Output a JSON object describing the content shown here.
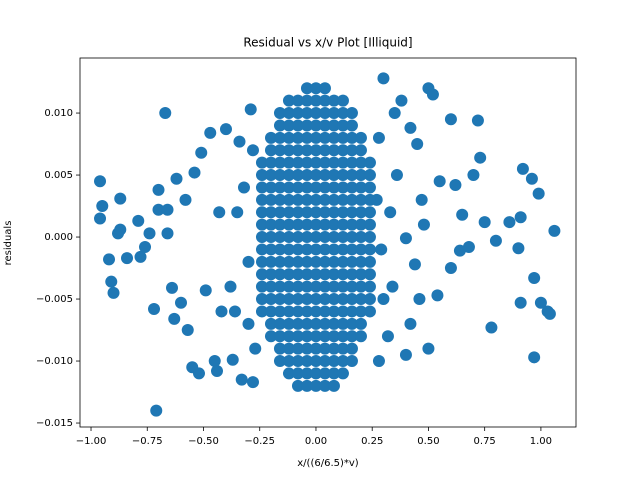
{
  "chart_data": {
    "type": "scatter",
    "title": "Residual vs x/v Plot [Illiquid]",
    "x_label": "x/((6/6.5)*v)",
    "y_label": "residuals",
    "color": "#1f77b4",
    "xlim": [
      -1.049,
      1.156
    ],
    "ylim": [
      -0.01532,
      0.01444
    ],
    "xticks": [
      {
        "value": -1,
        "label": "−1.00"
      },
      {
        "value": -0.75,
        "label": "−0.75"
      },
      {
        "value": -0.5,
        "label": "−0.50"
      },
      {
        "value": -0.25,
        "label": "−0.25"
      },
      {
        "value": 0,
        "label": "0.00"
      },
      {
        "value": 0.25,
        "label": "0.25"
      },
      {
        "value": 0.5,
        "label": "0.50"
      },
      {
        "value": 0.75,
        "label": "0.75"
      },
      {
        "value": 1,
        "label": "1.00"
      }
    ],
    "yticks": [
      {
        "value": -0.015,
        "label": "−0.015"
      },
      {
        "value": -0.01,
        "label": "−0.010"
      },
      {
        "value": -0.005,
        "label": "−0.005"
      },
      {
        "value": 0,
        "label": "0.000"
      },
      {
        "value": 0.005,
        "label": "0.005"
      },
      {
        "value": 0.01,
        "label": "0.010"
      }
    ],
    "x": [
      -0.96,
      -0.96,
      -0.95,
      -0.92,
      -0.91,
      -0.9,
      -0.88,
      -0.87,
      -0.87,
      -0.84,
      -0.79,
      -0.78,
      -0.76,
      -0.74,
      -0.72,
      -0.71,
      -0.7,
      -0.7,
      -0.67,
      -0.66,
      -0.66,
      -0.64,
      -0.63,
      -0.62,
      -0.6,
      -0.58,
      -0.57,
      -0.55,
      -0.54,
      -0.52,
      -0.51,
      -0.49,
      -0.47,
      -0.45,
      -0.44,
      -0.43,
      -0.42,
      -0.4,
      -0.38,
      -0.37,
      -0.34,
      -0.33,
      -0.3,
      -0.29,
      -0.28,
      0.5,
      0.52,
      0.6,
      0.72,
      0.73,
      0.7,
      0.62,
      0.55,
      0.65,
      0.64,
      0.68,
      0.75,
      0.8,
      0.78,
      0.86,
      0.91,
      0.92,
      0.96,
      0.99,
      1.06,
      0.9,
      0.91,
      0.97,
      1,
      1.03,
      1.04,
      0.97,
      0.6,
      0.54,
      0.5,
      0.46,
      0.42,
      0.4,
      0.45,
      0.42,
      0.38,
      0.35,
      0.47,
      0.44,
      0.48,
      0.4,
      0.36,
      0.34,
      0.32,
      0.3,
      -0.35,
      -0.3,
      -0.32,
      -0.28,
      -0.27,
      -0.36,
      0.28,
      0.3,
      0.28,
      0.33,
      0.27,
      0.29,
      -0.24,
      -0.24,
      -0.24,
      -0.24,
      -0.24,
      -0.24,
      -0.24,
      -0.24,
      -0.24,
      -0.24,
      -0.24,
      -0.24,
      -0.24,
      -0.2,
      -0.2,
      -0.2,
      -0.2,
      -0.2,
      -0.2,
      -0.2,
      -0.2,
      -0.2,
      -0.2,
      -0.2,
      -0.2,
      -0.2,
      -0.2,
      -0.2,
      -0.2,
      -0.2,
      -0.16,
      -0.16,
      -0.16,
      -0.16,
      -0.16,
      -0.16,
      -0.16,
      -0.16,
      -0.16,
      -0.16,
      -0.16,
      -0.16,
      -0.16,
      -0.16,
      -0.16,
      -0.16,
      -0.16,
      -0.16,
      -0.16,
      -0.16,
      -0.16,
      -0.12,
      -0.12,
      -0.12,
      -0.12,
      -0.12,
      -0.12,
      -0.12,
      -0.12,
      -0.12,
      -0.12,
      -0.12,
      -0.12,
      -0.12,
      -0.12,
      -0.12,
      -0.12,
      -0.12,
      -0.12,
      -0.12,
      -0.12,
      -0.12,
      -0.12,
      -0.12,
      -0.08,
      -0.08,
      -0.08,
      -0.08,
      -0.08,
      -0.08,
      -0.08,
      -0.08,
      -0.08,
      -0.08,
      -0.08,
      -0.08,
      -0.08,
      -0.08,
      -0.08,
      -0.08,
      -0.08,
      -0.08,
      -0.08,
      -0.08,
      -0.08,
      -0.08,
      -0.08,
      -0.08,
      -0.04,
      -0.04,
      -0.04,
      -0.04,
      -0.04,
      -0.04,
      -0.04,
      -0.04,
      -0.04,
      -0.04,
      -0.04,
      -0.04,
      -0.04,
      -0.04,
      -0.04,
      -0.04,
      -0.04,
      -0.04,
      -0.04,
      -0.04,
      -0.04,
      -0.04,
      -0.04,
      -0.04,
      -0.04,
      0,
      0,
      0,
      0,
      0,
      0,
      0,
      0,
      0,
      0,
      0,
      0,
      0,
      0,
      0,
      0,
      0,
      0,
      0,
      0,
      0,
      0,
      0,
      0,
      0,
      0.04,
      0.04,
      0.04,
      0.04,
      0.04,
      0.04,
      0.04,
      0.04,
      0.04,
      0.04,
      0.04,
      0.04,
      0.04,
      0.04,
      0.04,
      0.04,
      0.04,
      0.04,
      0.04,
      0.04,
      0.04,
      0.04,
      0.04,
      0.04,
      0.04,
      0.08,
      0.08,
      0.08,
      0.08,
      0.08,
      0.08,
      0.08,
      0.08,
      0.08,
      0.08,
      0.08,
      0.08,
      0.08,
      0.08,
      0.08,
      0.08,
      0.08,
      0.08,
      0.08,
      0.08,
      0.08,
      0.08,
      0.08,
      0.08,
      0.12,
      0.12,
      0.12,
      0.12,
      0.12,
      0.12,
      0.12,
      0.12,
      0.12,
      0.12,
      0.12,
      0.12,
      0.12,
      0.12,
      0.12,
      0.12,
      0.12,
      0.12,
      0.12,
      0.12,
      0.12,
      0.12,
      0.12,
      0.16,
      0.16,
      0.16,
      0.16,
      0.16,
      0.16,
      0.16,
      0.16,
      0.16,
      0.16,
      0.16,
      0.16,
      0.16,
      0.16,
      0.16,
      0.16,
      0.16,
      0.16,
      0.16,
      0.16,
      0.16,
      0.2,
      0.2,
      0.2,
      0.2,
      0.2,
      0.2,
      0.2,
      0.2,
      0.2,
      0.2,
      0.2,
      0.2,
      0.2,
      0.2,
      0.2,
      0.2,
      0.2,
      0.24,
      0.24,
      0.24,
      0.24,
      0.24,
      0.24,
      0.24,
      0.24,
      0.24,
      0.24,
      0.24,
      0.24,
      0.24
    ],
    "values": [
      0.0045,
      0.0015,
      0.0025,
      -0.0018,
      -0.0036,
      -0.0045,
      0.0003,
      0.0006,
      0.0031,
      -0.0017,
      0.0013,
      -0.0016,
      -0.0008,
      0.0003,
      -0.0058,
      -0.014,
      0.0038,
      0.0022,
      0.01,
      0.0022,
      0.0003,
      -0.0041,
      -0.0066,
      0.0047,
      -0.0053,
      0.003,
      -0.0075,
      -0.0105,
      0.0052,
      -0.011,
      0.0068,
      -0.0043,
      0.0084,
      -0.01,
      -0.0108,
      0.002,
      -0.006,
      0.0087,
      -0.004,
      -0.0099,
      0.0077,
      -0.0115,
      -0.007,
      0.0103,
      -0.0117,
      0.012,
      0.0115,
      0.0095,
      0.0094,
      0.0064,
      0.005,
      0.0042,
      0.0045,
      0.0018,
      -0.0011,
      -0.0008,
      0.0012,
      -0.0003,
      -0.0073,
      0.0012,
      0.0016,
      0.0055,
      0.0047,
      0.0035,
      0.0005,
      -0.0009,
      -0.0053,
      -0.0033,
      -0.0053,
      -0.006,
      -0.0062,
      -0.0097,
      -0.0025,
      -0.0047,
      -0.009,
      -0.005,
      -0.007,
      -0.0095,
      0.0075,
      0.0088,
      0.011,
      0.01,
      0.003,
      -0.0022,
      0.001,
      -0.0001,
      0.005,
      -0.004,
      -0.008,
      0.0128,
      0.002,
      -0.002,
      0.004,
      0.007,
      -0.009,
      -0.006,
      0.008,
      -0.005,
      -0.01,
      0.002,
      0.003,
      -0.001,
      -0.006,
      -0.005,
      -0.004,
      -0.003,
      -0.002,
      -0.001,
      0,
      0.001,
      0.002,
      0.003,
      0.004,
      0.005,
      0.006,
      -0.008,
      -0.007,
      -0.006,
      -0.005,
      -0.004,
      -0.003,
      -0.002,
      -0.001,
      0,
      0.001,
      0.002,
      0.003,
      0.004,
      0.005,
      0.006,
      0.007,
      0.008,
      -0.01,
      -0.009,
      -0.008,
      -0.007,
      -0.006,
      -0.005,
      -0.004,
      -0.003,
      -0.002,
      -0.001,
      0,
      0.001,
      0.002,
      0.003,
      0.004,
      0.005,
      0.006,
      0.007,
      0.008,
      0.009,
      0.01,
      -0.011,
      -0.01,
      -0.009,
      -0.008,
      -0.007,
      -0.006,
      -0.005,
      -0.004,
      -0.003,
      -0.002,
      -0.001,
      0,
      0.001,
      0.002,
      0.003,
      0.004,
      0.005,
      0.006,
      0.007,
      0.008,
      0.009,
      0.01,
      0.011,
      -0.012,
      -0.011,
      -0.01,
      -0.009,
      -0.008,
      -0.007,
      -0.006,
      -0.005,
      -0.004,
      -0.003,
      -0.002,
      -0.001,
      0,
      0.001,
      0.002,
      0.003,
      0.004,
      0.005,
      0.006,
      0.007,
      0.008,
      0.009,
      0.01,
      0.011,
      -0.012,
      -0.011,
      -0.01,
      -0.009,
      -0.008,
      -0.007,
      -0.006,
      -0.005,
      -0.004,
      -0.003,
      -0.002,
      -0.001,
      0,
      0.001,
      0.002,
      0.003,
      0.004,
      0.005,
      0.006,
      0.007,
      0.008,
      0.009,
      0.01,
      0.011,
      0.012,
      -0.012,
      -0.011,
      -0.01,
      -0.009,
      -0.008,
      -0.007,
      -0.006,
      -0.005,
      -0.004,
      -0.003,
      -0.002,
      -0.001,
      0,
      0.001,
      0.002,
      0.003,
      0.004,
      0.005,
      0.006,
      0.007,
      0.008,
      0.009,
      0.01,
      0.011,
      0.012,
      -0.012,
      -0.011,
      -0.01,
      -0.009,
      -0.008,
      -0.007,
      -0.006,
      -0.005,
      -0.004,
      -0.003,
      -0.002,
      -0.001,
      0,
      0.001,
      0.002,
      0.003,
      0.004,
      0.005,
      0.006,
      0.007,
      0.008,
      0.009,
      0.01,
      0.011,
      0.012,
      -0.012,
      -0.011,
      -0.01,
      -0.009,
      -0.008,
      -0.007,
      -0.006,
      -0.005,
      -0.004,
      -0.003,
      -0.002,
      -0.001,
      0,
      0.001,
      0.002,
      0.003,
      0.004,
      0.005,
      0.006,
      0.007,
      0.008,
      0.009,
      0.01,
      0.011,
      -0.011,
      -0.01,
      -0.009,
      -0.008,
      -0.007,
      -0.006,
      -0.005,
      -0.004,
      -0.003,
      -0.002,
      -0.001,
      0,
      0.001,
      0.002,
      0.003,
      0.004,
      0.005,
      0.006,
      0.007,
      0.008,
      0.009,
      0.01,
      0.011,
      -0.01,
      -0.009,
      -0.008,
      -0.007,
      -0.006,
      -0.005,
      -0.004,
      -0.003,
      -0.002,
      -0.001,
      0,
      0.001,
      0.002,
      0.003,
      0.004,
      0.005,
      0.006,
      0.007,
      0.008,
      0.009,
      0.01,
      -0.008,
      -0.007,
      -0.006,
      -0.005,
      -0.004,
      -0.003,
      -0.002,
      -0.001,
      0,
      0.001,
      0.002,
      0.003,
      0.004,
      0.005,
      0.006,
      0.007,
      0.008,
      -0.006,
      -0.005,
      -0.004,
      -0.003,
      -0.002,
      -0.001,
      0,
      0.001,
      0.002,
      0.003,
      0.004,
      0.005,
      0.006
    ]
  }
}
